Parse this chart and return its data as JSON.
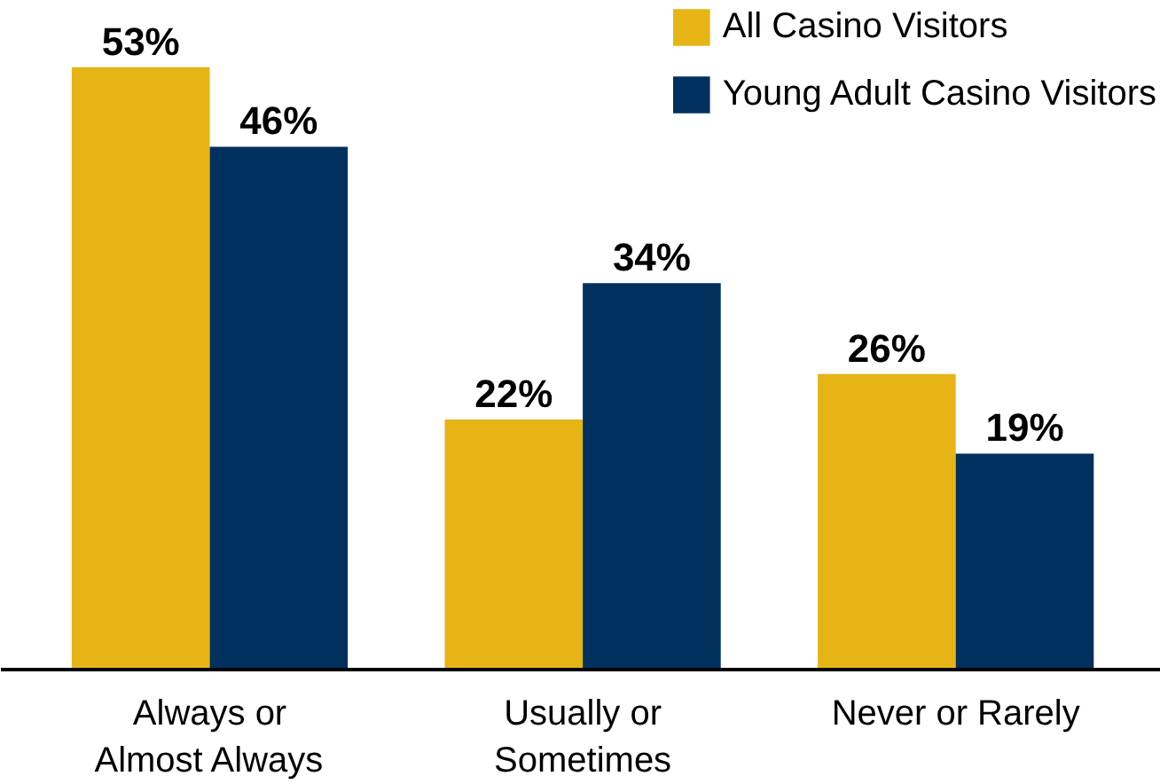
{
  "chart_data": {
    "type": "bar",
    "categories": [
      "Always or\nAlmost Always",
      "Usually or\nSometimes",
      "Never or Rarely"
    ],
    "series": [
      {
        "name": "All Casino Visitors",
        "color": "#e6b415",
        "values": [
          53,
          22,
          26
        ],
        "value_labels": [
          "53%",
          "22%",
          "26%"
        ]
      },
      {
        "name": "Young Adult Casino Visitors",
        "color": "#00305e",
        "values": [
          46,
          34,
          19
        ],
        "value_labels": [
          "46%",
          "34%",
          "19%"
        ]
      }
    ],
    "legend": "top right",
    "grid": false
  }
}
